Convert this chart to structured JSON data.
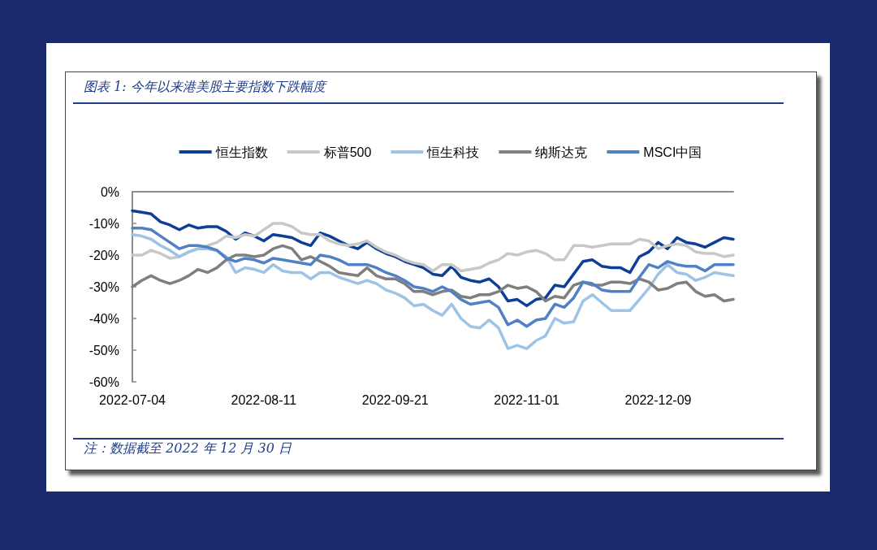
{
  "chart_data": {
    "type": "line",
    "title": "图表 1: 今年以来港美股主要指数下跌幅度",
    "annotations": [
      "注：数据截至 2022 年 12 月 30 日"
    ],
    "categories": [
      "2022-07-04",
      null,
      null,
      null,
      null,
      null,
      null,
      null,
      null,
      null,
      null,
      null,
      null,
      null,
      "2022-08-11",
      null,
      null,
      null,
      null,
      null,
      null,
      null,
      null,
      null,
      null,
      null,
      null,
      null,
      "2022-09-21",
      null,
      null,
      null,
      null,
      null,
      null,
      null,
      null,
      null,
      null,
      null,
      null,
      null,
      "2022-11-01",
      null,
      null,
      null,
      null,
      null,
      null,
      null,
      null,
      null,
      null,
      null,
      null,
      null,
      "2022-12-09",
      null,
      null,
      null,
      null,
      null,
      null,
      null,
      null
    ],
    "series": [
      {
        "name": "恒生指数",
        "color": "#0d3f96",
        "values": [
          -6,
          -6.5,
          -7,
          -9.5,
          -10.5,
          -12,
          -10.5,
          -11.5,
          -11,
          -11,
          -12.5,
          -15,
          -13,
          -14,
          -15.5,
          -13.5,
          -14,
          -14.5,
          -16,
          -17,
          -13,
          -14,
          -15.5,
          -17,
          -18,
          -16,
          -18,
          -19.5,
          -20.5,
          -22,
          -23,
          -24,
          -26,
          -26.5,
          -23.5,
          -27,
          -28,
          -28.5,
          -27.5,
          -30,
          -34.5,
          -34,
          -36,
          -34,
          -33.5,
          -29.5,
          -30,
          -26,
          -22,
          -21.5,
          -23.5,
          -24,
          -24,
          -25.5,
          -20.5,
          -19,
          -16,
          -18,
          -14.5,
          -16,
          -16.5,
          -17.5,
          -16,
          -14.5,
          -15
        ]
      },
      {
        "name": "标普500",
        "color": "#c8c8c8",
        "values": [
          -20,
          -20,
          -18.5,
          -19.5,
          -21,
          -20.5,
          -19,
          -18,
          -17,
          -16,
          -14,
          -14.5,
          -13.5,
          -14,
          -12,
          -10,
          -10,
          -11,
          -13,
          -13.5,
          -13.5,
          -15.5,
          -16.5,
          -17,
          -16.5,
          -15.5,
          -17.5,
          -19,
          -20,
          -21.5,
          -22.5,
          -23,
          -25,
          -23,
          -23,
          -25,
          -24.5,
          -24,
          -22.5,
          -21.5,
          -19.5,
          -20,
          -19,
          -18.5,
          -19.5,
          -21.5,
          -21.5,
          -17,
          -17,
          -17.5,
          -17,
          -16.5,
          -16.5,
          -16.5,
          -15,
          -15.5,
          -18,
          -17,
          -16.5,
          -17,
          -19,
          -19.5,
          -19.5,
          -20.5,
          -20
        ]
      },
      {
        "name": "恒生科技",
        "color": "#9dc3e6",
        "values": [
          -13.5,
          -14,
          -15,
          -17,
          -18.5,
          -20.5,
          -19,
          -18,
          -18,
          -18.5,
          -20.5,
          -25.5,
          -24,
          -24.5,
          -25.5,
          -23,
          -25,
          -25.5,
          -25.5,
          -27.5,
          -25.5,
          -25.5,
          -27,
          -28,
          -29,
          -28,
          -29,
          -31,
          -32,
          -33.5,
          -36,
          -35.5,
          -37.5,
          -39,
          -35.5,
          -40,
          -42.5,
          -43,
          -40.5,
          -43,
          -49.5,
          -48.5,
          -49.5,
          -47,
          -45.5,
          -40,
          -41.5,
          -41,
          -34.5,
          -32.5,
          -35,
          -37.5,
          -37.5,
          -37.5,
          -34,
          -30.5,
          -26,
          -23,
          -25.5,
          -26,
          -28,
          -27,
          -25.5,
          -26,
          -26.5
        ]
      },
      {
        "name": "纳斯达克",
        "color": "#7f7f7f",
        "values": [
          -30,
          -28,
          -26.5,
          -28,
          -29,
          -28,
          -26.5,
          -24.5,
          -25.5,
          -24,
          -21.5,
          -20,
          -20,
          -20.5,
          -20,
          -18,
          -17,
          -18,
          -21.5,
          -20.5,
          -22,
          -23.5,
          -25.5,
          -26,
          -26.5,
          -24,
          -26.5,
          -27.5,
          -27.5,
          -29,
          -31.5,
          -31.5,
          -32.5,
          -31.5,
          -31,
          -33,
          -33.5,
          -32.5,
          -32.5,
          -31.5,
          -29.5,
          -30.5,
          -30,
          -31.5,
          -34.5,
          -33,
          -33.5,
          -29.5,
          -28.5,
          -29.5,
          -29.5,
          -28.5,
          -28.5,
          -29,
          -27.5,
          -28.5,
          -31,
          -30.5,
          -29,
          -28.5,
          -31.5,
          -33,
          -32.5,
          -34.5,
          -34
        ]
      },
      {
        "name": "MSCI中国",
        "color": "#4f81c4",
        "values": [
          -11.5,
          -11.5,
          -12,
          -14,
          -16,
          -18,
          -17,
          -17,
          -17.5,
          -18.5,
          -21,
          -22,
          -21,
          -21.5,
          -22.5,
          -21,
          -21.5,
          -22,
          -22.5,
          -23,
          -20,
          -20.5,
          -21.5,
          -23,
          -23,
          -23,
          -24,
          -25.5,
          -26.5,
          -28,
          -30,
          -30.5,
          -31.5,
          -30,
          -31.5,
          -34,
          -35.5,
          -35,
          -34.5,
          -36.5,
          -42,
          -40.5,
          -42.5,
          -40.5,
          -40,
          -35.5,
          -36.5,
          -33.5,
          -28.5,
          -29,
          -31,
          -31.5,
          -31.5,
          -31.5,
          -27,
          -23,
          -24,
          -22,
          -23,
          -23.5,
          -23.5,
          -25,
          -23,
          -23,
          -23
        ]
      }
    ],
    "ylim": [
      -60,
      0
    ],
    "yticks": [
      {
        "value": 0,
        "label": "0%"
      },
      {
        "value": -10,
        "label": "-10%"
      },
      {
        "value": -20,
        "label": "-20%"
      },
      {
        "value": -30,
        "label": "-30%"
      },
      {
        "value": -40,
        "label": "-40%"
      },
      {
        "value": -50,
        "label": "-50%"
      },
      {
        "value": -60,
        "label": "-60%"
      }
    ],
    "grid": false,
    "legend": "top",
    "marker": "none",
    "line_style": "solid"
  }
}
